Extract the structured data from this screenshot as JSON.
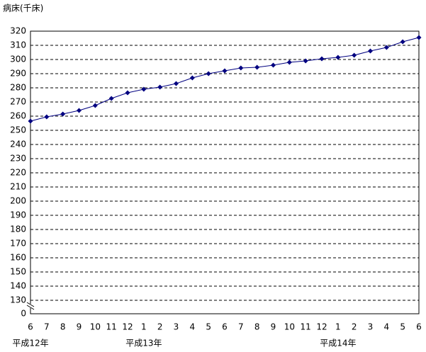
{
  "chart_data": {
    "type": "line",
    "y_axis_label": "病床(千床)",
    "categories": [
      "6",
      "7",
      "8",
      "9",
      "10",
      "11",
      "12",
      "1",
      "2",
      "3",
      "4",
      "5",
      "6",
      "7",
      "8",
      "9",
      "10",
      "11",
      "12",
      "1",
      "2",
      "3",
      "4",
      "5",
      "6"
    ],
    "years": [
      "平成12年",
      null,
      null,
      null,
      null,
      null,
      null,
      "平成13年",
      null,
      null,
      null,
      null,
      null,
      null,
      null,
      null,
      null,
      null,
      null,
      "平成14年",
      null,
      null,
      null,
      null,
      null
    ],
    "series": [
      {
        "color": "#000080",
        "values": [
          256.5,
          259.5,
          261.5,
          264,
          267.5,
          272.5,
          276.5,
          279,
          280.5,
          283,
          287,
          290,
          292,
          294,
          294.5,
          296,
          298,
          299,
          300.5,
          301.5,
          303,
          306,
          308.5,
          312.5,
          315.5
        ]
      }
    ],
    "ylim": [
      0,
      320
    ],
    "yticks": [
      0,
      130,
      140,
      150,
      160,
      170,
      180,
      190,
      200,
      210,
      220,
      230,
      240,
      250,
      260,
      270,
      280,
      290,
      300,
      310,
      320
    ],
    "axis_break": true,
    "grid": true
  }
}
